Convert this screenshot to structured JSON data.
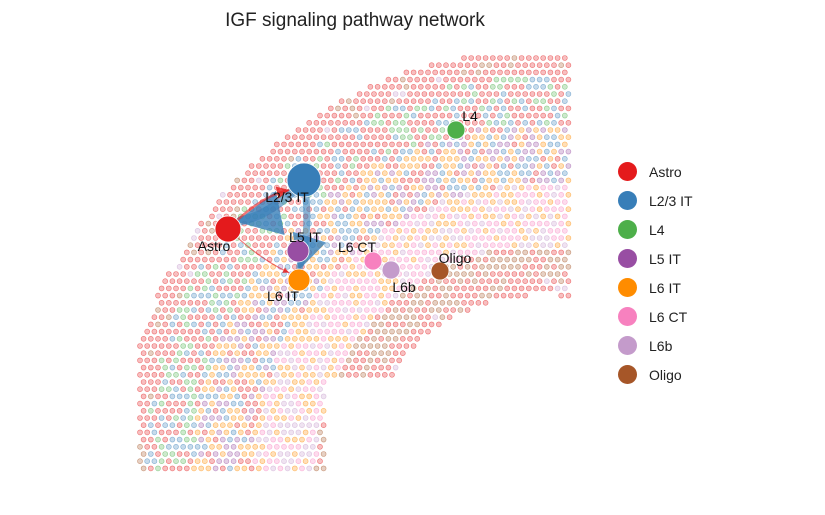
{
  "title": "IGF signaling pathway network",
  "colors": {
    "Astro": "#e41a1c",
    "L2/3 IT": "#377eb8",
    "L4": "#4daf4a",
    "L5 IT": "#984ea3",
    "L6 IT": "#ff8c00",
    "L6 CT": "#f781bf",
    "L6b": "#c49bcb",
    "Oligo": "#a65628"
  },
  "nodes": [
    {
      "id": "Astro",
      "label": "Astro"
    },
    {
      "id": "L2/3 IT",
      "label": "L2/3 IT"
    },
    {
      "id": "L4",
      "label": "L4"
    },
    {
      "id": "L5 IT",
      "label": "L5 IT"
    },
    {
      "id": "L6 IT",
      "label": "L6 IT"
    },
    {
      "id": "L6 CT",
      "label": "L6 CT"
    },
    {
      "id": "L6b",
      "label": "L6b"
    },
    {
      "id": "Oligo",
      "label": "Oligo"
    }
  ],
  "edges": [
    {
      "from": "L2/3 IT",
      "to": "Astro"
    },
    {
      "from": "L2/3 IT",
      "to": "L6 IT"
    },
    {
      "from": "Astro",
      "to": "L2/3 IT"
    },
    {
      "from": "Astro",
      "to": "L6 IT"
    }
  ],
  "legend": [
    {
      "label": "Astro",
      "color": "#e41a1c"
    },
    {
      "label": "L2/3 IT",
      "color": "#377eb8"
    },
    {
      "label": "L4",
      "color": "#4daf4a"
    },
    {
      "label": "L5 IT",
      "color": "#984ea3"
    },
    {
      "label": "L6 IT",
      "color": "#ff8c00"
    },
    {
      "label": "L6 CT",
      "color": "#f781bf"
    },
    {
      "label": "L6b",
      "color": "#c49bcb"
    },
    {
      "label": "Oligo",
      "color": "#a65628"
    }
  ]
}
